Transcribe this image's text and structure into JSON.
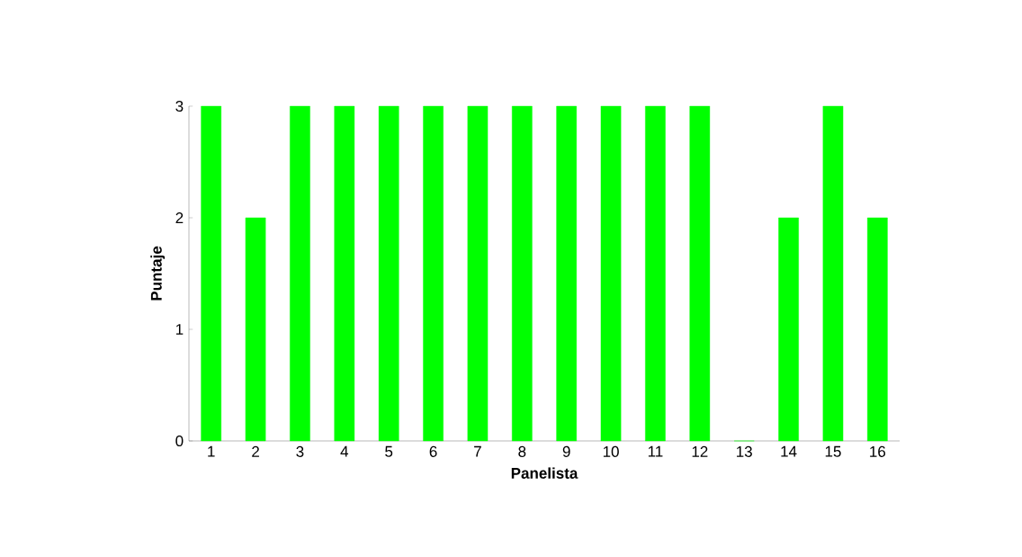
{
  "chart_data": {
    "type": "bar",
    "xlabel": "Panelista",
    "ylabel": "Puntaje",
    "categories": [
      "1",
      "2",
      "3",
      "4",
      "5",
      "6",
      "7",
      "8",
      "9",
      "10",
      "11",
      "12",
      "13",
      "14",
      "15",
      "16"
    ],
    "values": [
      3,
      2,
      3,
      3,
      3,
      3,
      3,
      3,
      3,
      3,
      3,
      3,
      0,
      2,
      3,
      2
    ],
    "color": "#00ff00",
    "ylim": [
      0,
      3
    ],
    "yticks": [
      0,
      1,
      2,
      3
    ]
  }
}
